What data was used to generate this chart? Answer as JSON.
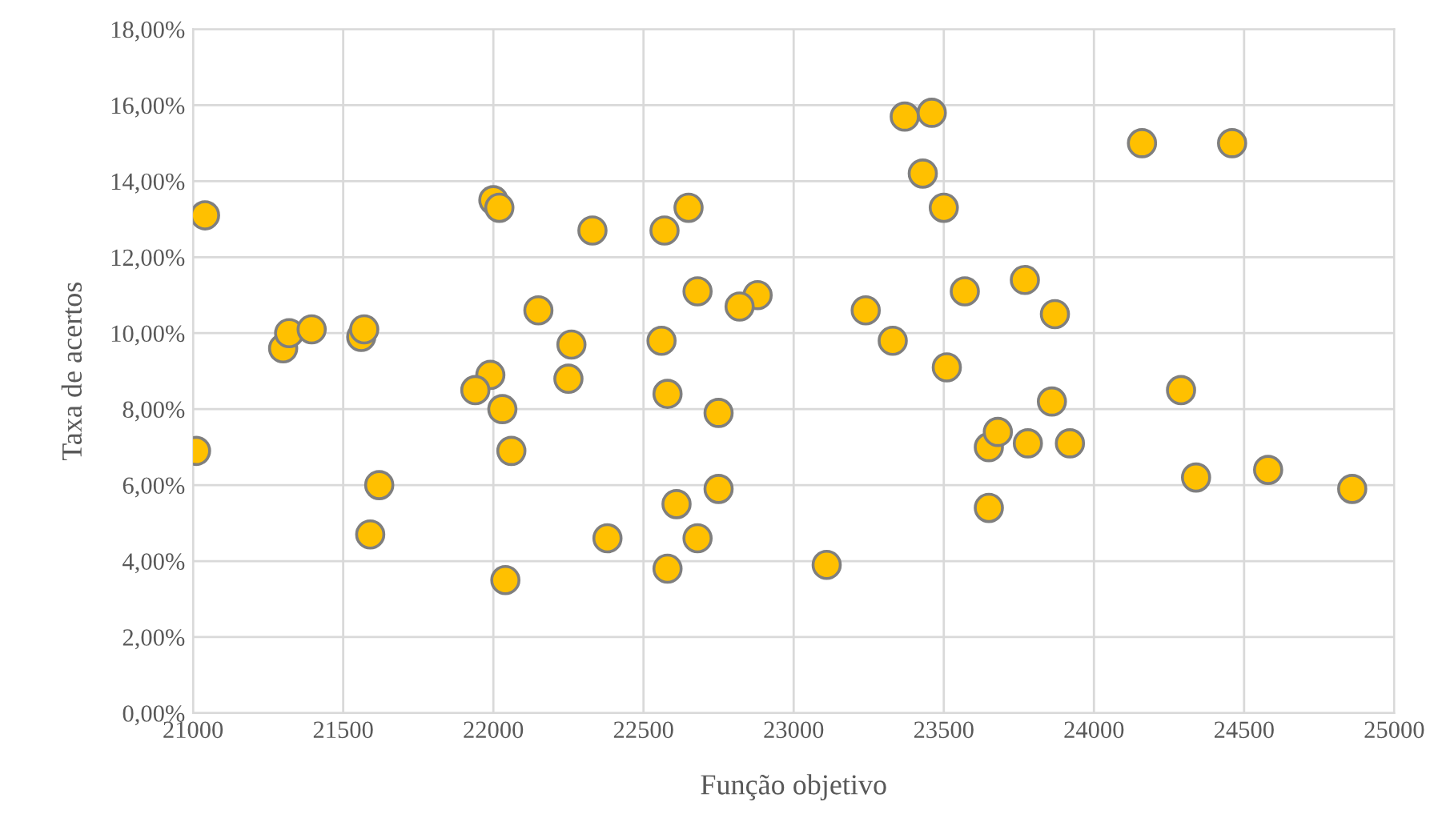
{
  "chart_data": {
    "type": "scatter",
    "xlabel": "Função objetivo",
    "ylabel": "Taxa de acertos",
    "xlim": [
      21000,
      25000
    ],
    "xticks": [
      21000,
      21500,
      22000,
      22500,
      23000,
      23500,
      24000,
      24500,
      25000
    ],
    "ylim": [
      0,
      18
    ],
    "yticks": [
      {
        "value": 0,
        "label": "0,00%"
      },
      {
        "value": 2,
        "label": "2,00%"
      },
      {
        "value": 4,
        "label": "4,00%"
      },
      {
        "value": 6,
        "label": "6,00%"
      },
      {
        "value": 8,
        "label": "8,00%"
      },
      {
        "value": 10,
        "label": "10,00%"
      },
      {
        "value": 12,
        "label": "12,00%"
      },
      {
        "value": 14,
        "label": "14,00%"
      },
      {
        "value": 16,
        "label": "16,00%"
      },
      {
        "value": 18,
        "label": "18,00%"
      }
    ],
    "grid": true,
    "marker": "circle",
    "legend": false,
    "series": [
      {
        "color": "#ffc000",
        "x": [
          21040,
          21010,
          21300,
          21320,
          21395,
          21560,
          21570,
          21620,
          21590,
          22000,
          22020,
          22330,
          22570,
          22650,
          22680,
          22880,
          22820,
          22150,
          22260,
          22250,
          22560,
          21990,
          21940,
          22030,
          22060,
          22580,
          22750,
          22610,
          22750,
          22680,
          22380,
          22580,
          22040,
          23650,
          23680,
          23780,
          23920,
          23650,
          23860,
          23870,
          23770,
          23570,
          23240,
          23330,
          23510,
          23110,
          23370,
          23460,
          23430,
          23500,
          24160,
          24460,
          24290,
          24340,
          24580,
          24860
        ],
        "values": [
          13.1,
          6.9,
          9.6,
          10.0,
          10.1,
          9.9,
          10.1,
          6.0,
          4.7,
          13.5,
          13.3,
          12.7,
          12.7,
          13.3,
          11.1,
          11.0,
          10.7,
          10.6,
          9.7,
          8.8,
          9.8,
          8.9,
          8.5,
          8.0,
          6.9,
          8.4,
          7.9,
          5.5,
          5.9,
          4.6,
          4.6,
          3.8,
          3.5,
          7.0,
          7.4,
          7.1,
          7.1,
          5.4,
          8.2,
          10.5,
          11.4,
          11.1,
          10.6,
          9.8,
          9.1,
          3.9,
          15.7,
          15.8,
          14.2,
          13.3,
          15.0,
          15.0,
          8.5,
          6.2,
          6.4,
          5.9
        ]
      }
    ]
  }
}
